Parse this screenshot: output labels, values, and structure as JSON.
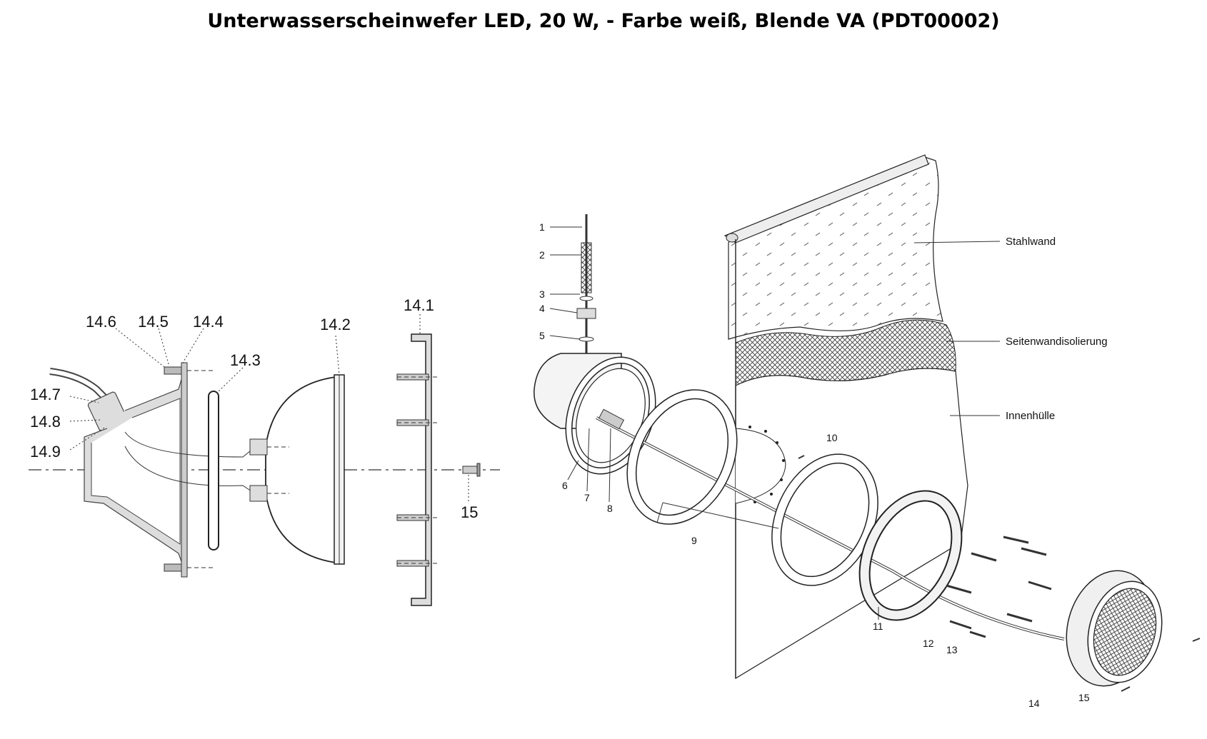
{
  "title": "Unterwasserscheinwefer LED, 20 W, - Farbe weiß, Blende VA (PDT00002)",
  "left_labels": {
    "l14_6": "14.6",
    "l14_5": "14.5",
    "l14_4": "14.4",
    "l14_3": "14.3",
    "l14_2": "14.2",
    "l14_1": "14.1",
    "l14_7": "14.7",
    "l14_8": "14.8",
    "l14_9": "14.9",
    "l15": "15"
  },
  "right_labels": {
    "n1": "1",
    "n2": "2",
    "n3": "3",
    "n4": "4",
    "n5": "5",
    "n6": "6",
    "n7": "7",
    "n8": "8",
    "n9": "9",
    "n10": "10",
    "n11": "11",
    "n12": "12",
    "n13": "13",
    "n14": "14",
    "n15": "15"
  },
  "wall_labels": {
    "stahlwand": "Stahlwand",
    "seitenwandisolierung": "Seitenwandisolierung",
    "innenhuelle": "Innenhülle"
  }
}
